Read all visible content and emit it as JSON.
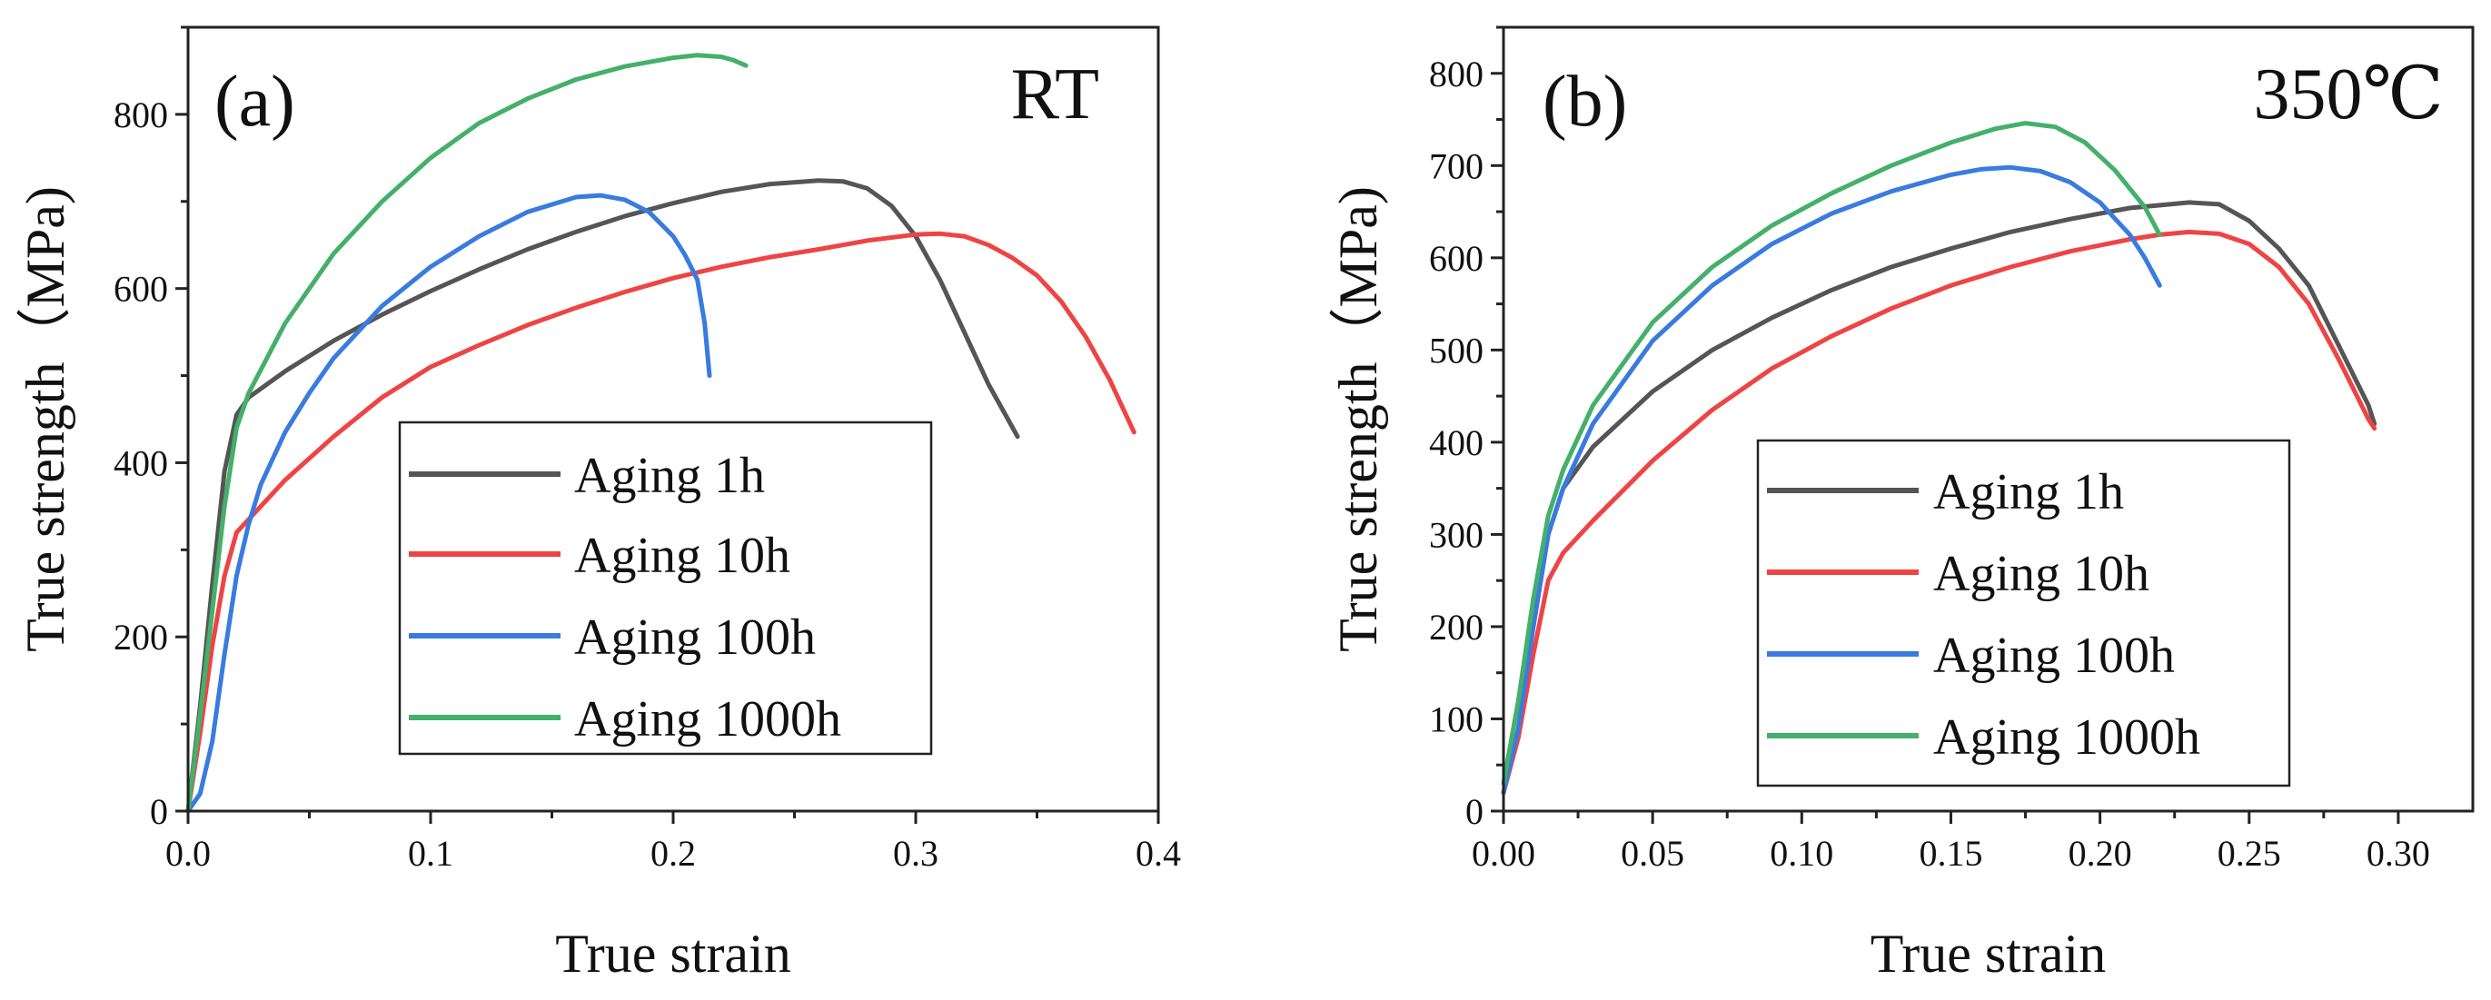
{
  "chart_data": [
    {
      "type": "line",
      "panel_label": "(a)",
      "condition": "RT",
      "xlabel": "True strain",
      "ylabel": "True strength（MPa)",
      "xlim": [
        0.0,
        0.4
      ],
      "ylim": [
        0,
        900
      ],
      "xticks": [
        0.0,
        0.1,
        0.2,
        0.3,
        0.4
      ],
      "xtick_labels": [
        "0.0",
        "0.1",
        "0.2",
        "0.3",
        "0.4"
      ],
      "yticks": [
        0,
        200,
        400,
        600,
        800
      ],
      "ytick_labels": [
        "0",
        "200",
        "400",
        "600",
        "800"
      ],
      "grid": false,
      "legend_position": "center",
      "series": [
        {
          "name": "Aging 1h",
          "color": "#555555",
          "x": [
            0.0,
            0.005,
            0.01,
            0.015,
            0.02,
            0.025,
            0.04,
            0.06,
            0.08,
            0.1,
            0.12,
            0.14,
            0.16,
            0.18,
            0.2,
            0.22,
            0.24,
            0.26,
            0.27,
            0.28,
            0.29,
            0.3,
            0.31,
            0.32,
            0.33,
            0.34,
            0.342
          ],
          "y": [
            0,
            120,
            260,
            390,
            455,
            475,
            505,
            540,
            570,
            597,
            622,
            645,
            665,
            683,
            698,
            711,
            720,
            724,
            723,
            715,
            695,
            660,
            610,
            550,
            490,
            440,
            430
          ]
        },
        {
          "name": "Aging 10h",
          "color": "#ee4444",
          "x": [
            0.0,
            0.005,
            0.01,
            0.015,
            0.02,
            0.03,
            0.04,
            0.06,
            0.08,
            0.1,
            0.12,
            0.14,
            0.16,
            0.18,
            0.2,
            0.22,
            0.24,
            0.26,
            0.28,
            0.3,
            0.31,
            0.32,
            0.33,
            0.34,
            0.35,
            0.36,
            0.37,
            0.38,
            0.39
          ],
          "y": [
            0,
            90,
            190,
            270,
            320,
            350,
            380,
            430,
            475,
            510,
            535,
            558,
            578,
            596,
            612,
            625,
            636,
            645,
            655,
            662,
            663,
            660,
            650,
            635,
            615,
            585,
            545,
            495,
            435
          ]
        },
        {
          "name": "Aging 100h",
          "color": "#3a7be0",
          "x": [
            0.0,
            0.005,
            0.01,
            0.015,
            0.02,
            0.025,
            0.03,
            0.04,
            0.05,
            0.06,
            0.08,
            0.1,
            0.12,
            0.14,
            0.16,
            0.17,
            0.18,
            0.19,
            0.2,
            0.205,
            0.21,
            0.213,
            0.215
          ],
          "y": [
            0,
            20,
            80,
            180,
            270,
            330,
            375,
            435,
            480,
            520,
            580,
            625,
            660,
            688,
            705,
            707,
            702,
            688,
            660,
            638,
            610,
            560,
            500
          ]
        },
        {
          "name": "Aging 1000h",
          "color": "#44b06a",
          "x": [
            0.0,
            0.005,
            0.01,
            0.015,
            0.02,
            0.025,
            0.04,
            0.06,
            0.08,
            0.1,
            0.12,
            0.14,
            0.16,
            0.18,
            0.2,
            0.21,
            0.22,
            0.225,
            0.23
          ],
          "y": [
            0,
            110,
            230,
            350,
            440,
            480,
            560,
            640,
            700,
            750,
            790,
            818,
            840,
            855,
            865,
            868,
            866,
            862,
            856
          ]
        }
      ]
    },
    {
      "type": "line",
      "panel_label": "(b)",
      "condition": "350℃",
      "xlabel": "True strain",
      "ylabel": "True strength（MPa)",
      "xlim": [
        0.0,
        0.325
      ],
      "ylim": [
        0,
        850
      ],
      "xticks": [
        0.0,
        0.05,
        0.1,
        0.15,
        0.2,
        0.25,
        0.3
      ],
      "xtick_labels": [
        "0.00",
        "0.05",
        "0.10",
        "0.15",
        "0.20",
        "0.25",
        "0.30"
      ],
      "yticks": [
        0,
        100,
        200,
        300,
        400,
        500,
        600,
        700,
        800
      ],
      "ytick_labels": [
        "0",
        "100",
        "200",
        "300",
        "400",
        "500",
        "600",
        "700",
        "800"
      ],
      "grid": false,
      "legend_position": "center",
      "series": [
        {
          "name": "Aging 1h",
          "color": "#555555",
          "x": [
            0.0,
            0.005,
            0.01,
            0.015,
            0.02,
            0.03,
            0.05,
            0.07,
            0.09,
            0.11,
            0.13,
            0.15,
            0.17,
            0.19,
            0.21,
            0.23,
            0.24,
            0.25,
            0.26,
            0.27,
            0.28,
            0.29,
            0.292
          ],
          "y": [
            20,
            90,
            200,
            300,
            350,
            395,
            455,
            500,
            535,
            565,
            590,
            610,
            628,
            642,
            654,
            660,
            658,
            640,
            610,
            570,
            505,
            440,
            420
          ]
        },
        {
          "name": "Aging 10h",
          "color": "#ee4444",
          "x": [
            0.0,
            0.005,
            0.01,
            0.015,
            0.02,
            0.03,
            0.05,
            0.07,
            0.09,
            0.11,
            0.13,
            0.15,
            0.17,
            0.19,
            0.21,
            0.22,
            0.23,
            0.24,
            0.25,
            0.26,
            0.27,
            0.28,
            0.29,
            0.292
          ],
          "y": [
            20,
            80,
            170,
            250,
            280,
            315,
            380,
            435,
            480,
            515,
            545,
            570,
            590,
            607,
            620,
            625,
            628,
            626,
            615,
            590,
            550,
            490,
            425,
            415
          ]
        },
        {
          "name": "Aging 100h",
          "color": "#3a7be0",
          "x": [
            0.0,
            0.005,
            0.01,
            0.015,
            0.02,
            0.03,
            0.05,
            0.07,
            0.09,
            0.11,
            0.13,
            0.15,
            0.16,
            0.17,
            0.18,
            0.19,
            0.2,
            0.21,
            0.215,
            0.22
          ],
          "y": [
            20,
            90,
            200,
            300,
            350,
            420,
            510,
            570,
            615,
            648,
            672,
            690,
            696,
            698,
            694,
            682,
            660,
            625,
            600,
            570
          ]
        },
        {
          "name": "Aging 1000h",
          "color": "#44b06a",
          "x": [
            0.0,
            0.005,
            0.01,
            0.015,
            0.02,
            0.03,
            0.05,
            0.07,
            0.09,
            0.11,
            0.13,
            0.15,
            0.165,
            0.175,
            0.185,
            0.195,
            0.205,
            0.215,
            0.22
          ],
          "y": [
            30,
            120,
            230,
            320,
            370,
            440,
            530,
            590,
            635,
            670,
            700,
            725,
            740,
            746,
            742,
            725,
            695,
            655,
            625
          ]
        }
      ]
    }
  ]
}
